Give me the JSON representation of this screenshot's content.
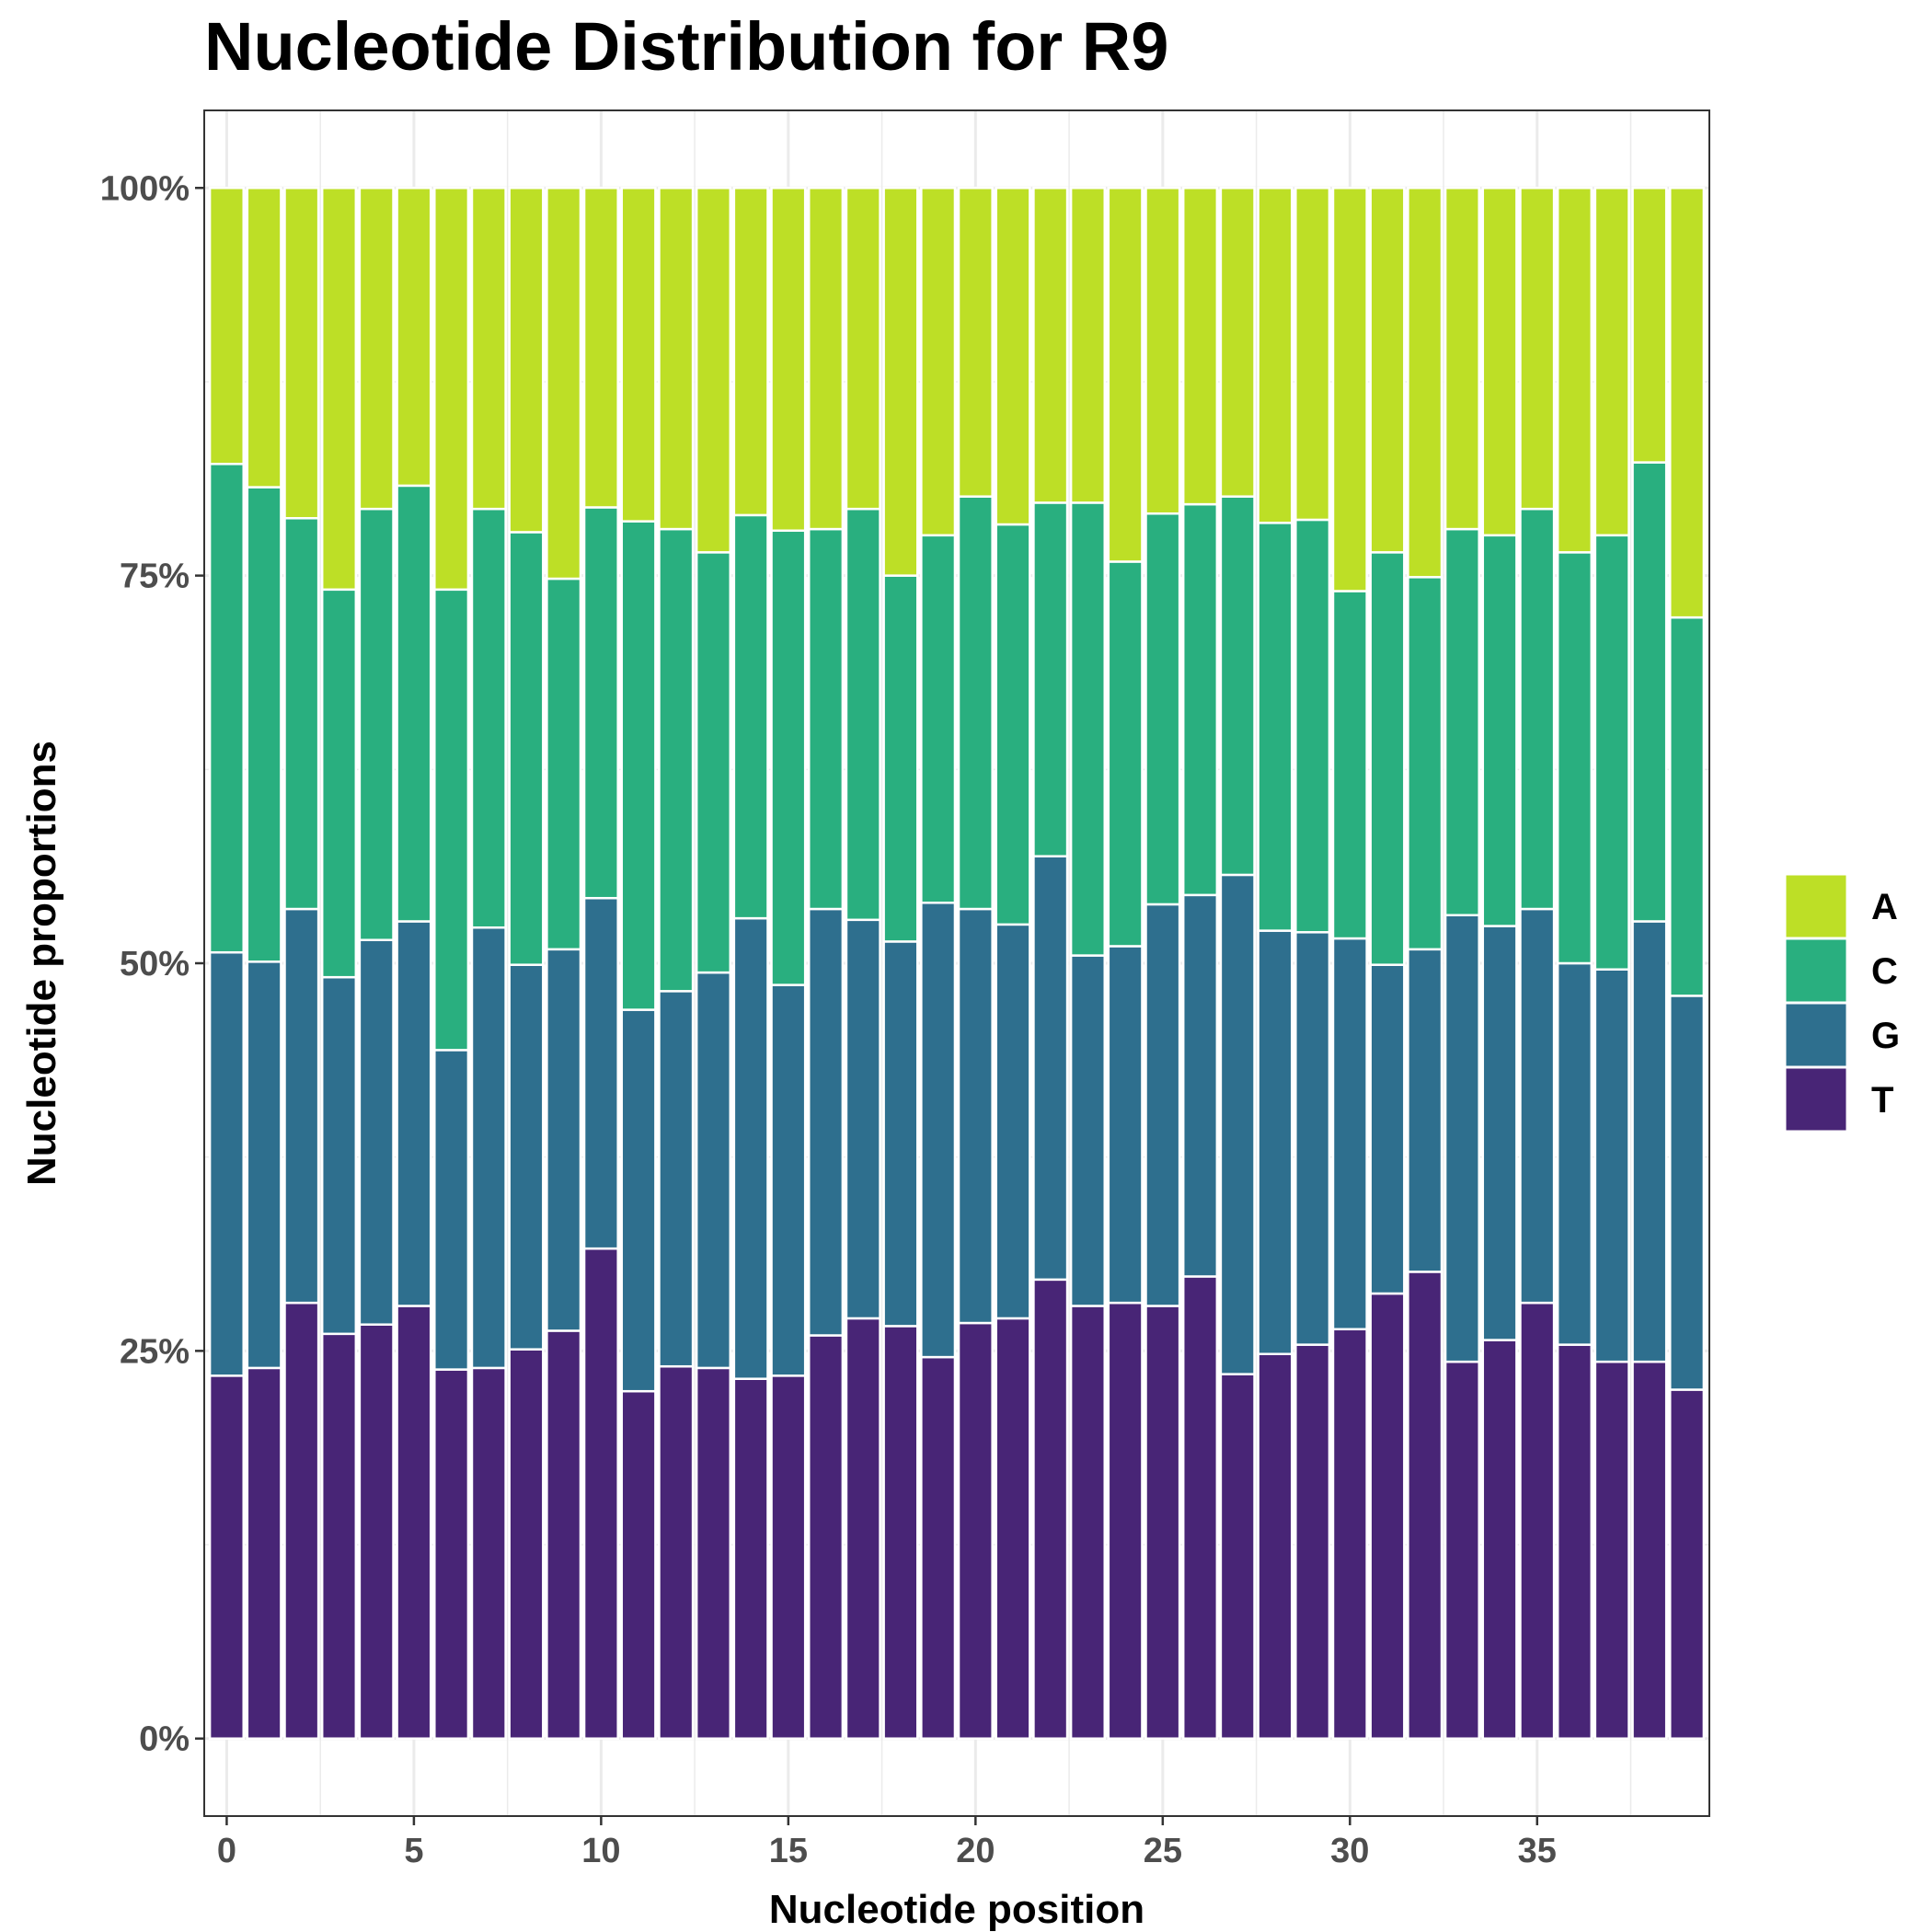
{
  "chart_data": {
    "type": "bar",
    "stacked": true,
    "title": "Nucleotide Distribution for R9",
    "xlabel": "Nucleotide position",
    "ylabel": "Nucleotide proportions",
    "x": [
      0,
      1,
      2,
      3,
      4,
      5,
      6,
      7,
      8,
      9,
      10,
      11,
      12,
      13,
      14,
      15,
      16,
      17,
      18,
      19,
      20,
      21,
      22,
      23,
      24,
      25,
      26,
      27,
      28,
      29,
      30,
      31,
      32,
      33,
      34,
      35,
      36,
      37,
      38,
      39
    ],
    "x_ticks": [
      "0",
      "5",
      "10",
      "15",
      "20",
      "25",
      "30",
      "35"
    ],
    "x_tick_values": [
      0,
      5,
      10,
      15,
      20,
      25,
      30,
      35
    ],
    "y_ticks": [
      "0%",
      "25%",
      "50%",
      "75%",
      "100%"
    ],
    "y_tick_values": [
      0,
      0.25,
      0.5,
      0.75,
      1.0
    ],
    "xlim": [
      -0.6,
      39.6
    ],
    "ylim": [
      -0.05,
      1.05
    ],
    "grid": true,
    "legend_position": "right",
    "stack_order_bottom_to_top": [
      "T",
      "G",
      "C",
      "A"
    ],
    "series": [
      {
        "name": "A",
        "color": "#bddf26",
        "values": [
          0.178,
          0.193,
          0.213,
          0.259,
          0.207,
          0.192,
          0.259,
          0.207,
          0.222,
          0.252,
          0.206,
          0.215,
          0.22,
          0.235,
          0.211,
          0.221,
          0.22,
          0.207,
          0.25,
          0.224,
          0.199,
          0.217,
          0.203,
          0.203,
          0.241,
          0.21,
          0.204,
          0.199,
          0.216,
          0.214,
          0.26,
          0.235,
          0.251,
          0.22,
          0.224,
          0.207,
          0.235,
          0.224,
          0.177,
          0.277
        ]
      },
      {
        "name": "C",
        "color": "#29af7f",
        "values": [
          0.315,
          0.306,
          0.252,
          0.25,
          0.278,
          0.281,
          0.297,
          0.27,
          0.279,
          0.239,
          0.252,
          0.315,
          0.298,
          0.271,
          0.26,
          0.293,
          0.245,
          0.265,
          0.236,
          0.237,
          0.266,
          0.258,
          0.228,
          0.292,
          0.248,
          0.252,
          0.252,
          0.244,
          0.263,
          0.266,
          0.224,
          0.266,
          0.24,
          0.249,
          0.252,
          0.258,
          0.265,
          0.28,
          0.296,
          0.244
        ]
      },
      {
        "name": "G",
        "color": "#2e6f8e",
        "values": [
          0.273,
          0.262,
          0.254,
          0.23,
          0.248,
          0.248,
          0.206,
          0.284,
          0.248,
          0.246,
          0.226,
          0.246,
          0.242,
          0.255,
          0.297,
          0.252,
          0.275,
          0.257,
          0.248,
          0.293,
          0.267,
          0.254,
          0.273,
          0.226,
          0.23,
          0.259,
          0.246,
          0.322,
          0.273,
          0.266,
          0.252,
          0.212,
          0.208,
          0.288,
          0.267,
          0.254,
          0.246,
          0.253,
          0.284,
          0.254
        ]
      },
      {
        "name": "T",
        "color": "#482576",
        "values": [
          0.234,
          0.239,
          0.281,
          0.261,
          0.267,
          0.279,
          0.238,
          0.239,
          0.251,
          0.263,
          0.316,
          0.224,
          0.24,
          0.239,
          0.232,
          0.234,
          0.26,
          0.271,
          0.266,
          0.246,
          0.268,
          0.271,
          0.296,
          0.279,
          0.281,
          0.279,
          0.298,
          0.235,
          0.248,
          0.254,
          0.264,
          0.287,
          0.301,
          0.243,
          0.257,
          0.281,
          0.254,
          0.243,
          0.243,
          0.225
        ]
      }
    ]
  }
}
